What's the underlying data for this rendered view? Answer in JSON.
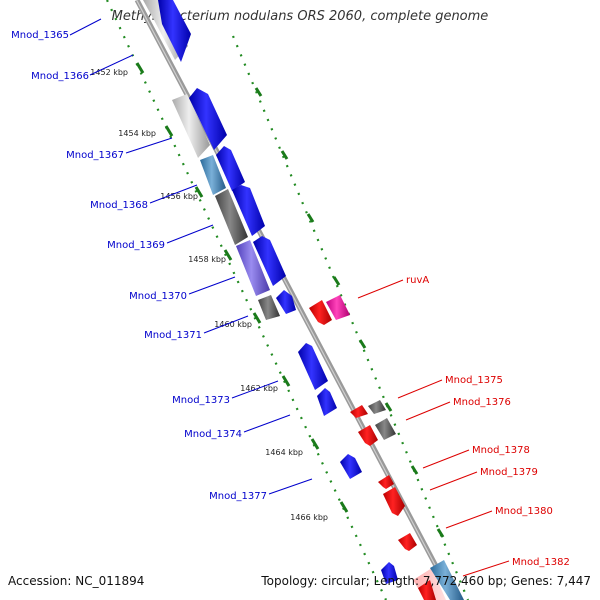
{
  "title": "Methylobacterium nodulans ORS 2060, complete genome",
  "footer": {
    "accession": "Accession: NC_011894",
    "summary": "Topology: circular; Length: 7,772,460 bp; Genes: 7,447"
  },
  "ticks": [
    "1452 kbp",
    "1454 kbp",
    "1456 kbp",
    "1458 kbp",
    "1460 kbp",
    "1462 kbp",
    "1464 kbp",
    "1466 kbp"
  ],
  "genes_left": [
    "Mnod_1365",
    "Mnod_1366",
    "Mnod_1367",
    "Mnod_1368",
    "Mnod_1369",
    "Mnod_1370",
    "Mnod_1371",
    "Mnod_1373",
    "Mnod_1374",
    "Mnod_1377"
  ],
  "genes_right": [
    "ruvA",
    "Mnod_1375",
    "Mnod_1376",
    "Mnod_1378",
    "Mnod_1379",
    "Mnod_1380",
    "Mnod_1382"
  ],
  "colors": {
    "forward_strand": "#0000ee",
    "reverse_strand": "#ee0000",
    "backbone": "#999999",
    "tick_marks": "#228b22"
  }
}
